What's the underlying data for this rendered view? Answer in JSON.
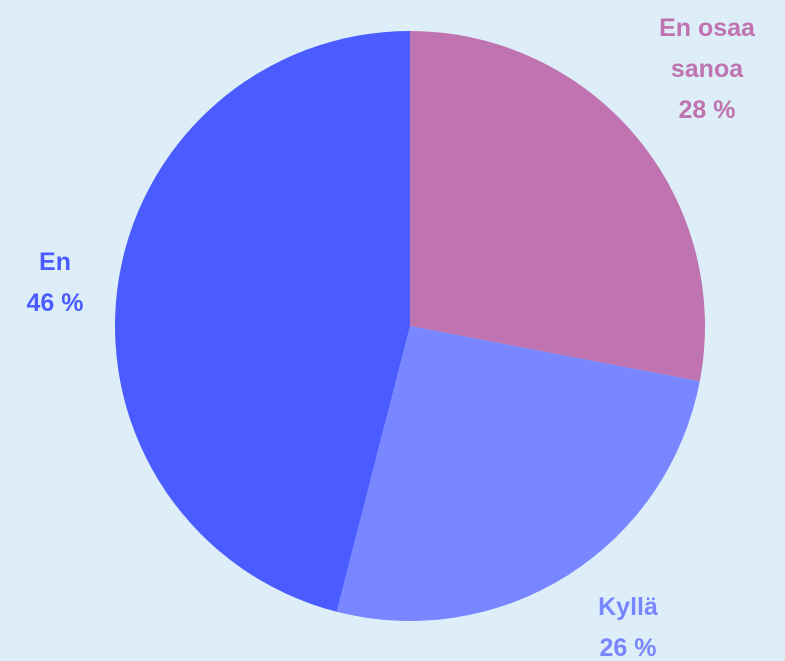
{
  "chart_data": {
    "type": "pie",
    "categories": [
      "En osaa sanoa",
      "Kyllä",
      "En"
    ],
    "values": [
      28,
      26,
      46
    ],
    "value_labels": [
      "28 %",
      "26 %",
      "46 %"
    ],
    "colors": [
      "#bf73b0",
      "#7887ff",
      "#4a5cff"
    ]
  }
}
